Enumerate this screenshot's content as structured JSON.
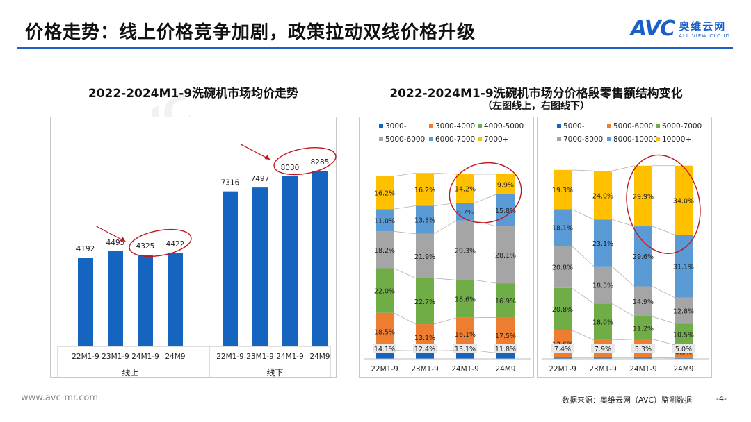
{
  "header": {
    "title": "价格走势：线上价格竞争加剧，政策拉动双线价格升级",
    "logo_mark": "AVC",
    "logo_cn": "奥维云网",
    "logo_en": "ALL VIEW CLOUD",
    "accent_color": "#1f5fbf"
  },
  "left_chart": {
    "title": "2022-2024M1-9洗碗机市场均价走势"
  },
  "right_chart": {
    "title": "2022-2024M1-9洗碗机市场分价格段零售额结构变化",
    "subtitle": "（左图线上，右图线下）"
  },
  "footer": {
    "url": "www.avc-mr.com",
    "source": "数据来源：奥维云网（AVC）监测数据",
    "page": "-4-"
  },
  "chart_data": [
    {
      "type": "bar",
      "title": "2022-2024M1-9洗碗机市场均价走势",
      "groups": [
        "线上",
        "线下"
      ],
      "categories": [
        "22M1-9",
        "23M1-9",
        "24M1-9",
        "24M9"
      ],
      "series": [
        {
          "group": "线上",
          "values": [
            4192,
            4495,
            4325,
            4422
          ]
        },
        {
          "group": "线下",
          "values": [
            7316,
            7497,
            8030,
            8285
          ]
        }
      ],
      "ylim": [
        0,
        9500
      ],
      "bar_color": "#1565c0",
      "annotations": [
        "circle around 24M1-9 and 24M9 (线上)",
        "circle around 24M1-9 and 24M9 (线下)"
      ]
    },
    {
      "type": "bar",
      "stacked": "100%",
      "title": "线上",
      "categories": [
        "22M1-9",
        "23M1-9",
        "24M1-9",
        "24M9"
      ],
      "series": [
        {
          "name": "3000-",
          "color": "#1565c0",
          "values": [
            4.2,
            4.0,
            4.2,
            2.9
          ]
        },
        {
          "name": "3000-4000",
          "color": "#ed7d31",
          "values": [
            18.5,
            13.1,
            16.1,
            17.5
          ]
        },
        {
          "name": "4000-5000",
          "color": "#70ad47",
          "values": [
            22.0,
            22.7,
            18.6,
            16.9
          ]
        },
        {
          "name": "5000-6000",
          "color": "#a5a5a5",
          "values": [
            18.2,
            21.9,
            29.3,
            28.1
          ]
        },
        {
          "name": "6000-7000",
          "color": "#5b9bd5",
          "values": [
            11.0,
            13.8,
            8.7,
            15.8
          ]
        },
        {
          "name": "7000+",
          "color": "#ffc000",
          "values": [
            16.2,
            16.2,
            14.2,
            9.9
          ]
        }
      ],
      "gap_labels": [
        "14.1%",
        "12.4%",
        "13.1%",
        "11.8%"
      ],
      "label_hidden_series": "3000-"
    },
    {
      "type": "bar",
      "stacked": "100%",
      "title": "线下",
      "categories": [
        "22M1-9",
        "23M1-9",
        "24M1-9",
        "24M9"
      ],
      "series": [
        {
          "name": "5000-",
          "color": "#1565c0",
          "values": [
            0.6,
            0.6,
            0.6,
            0.4
          ]
        },
        {
          "name": "5000-6000",
          "color": "#ed7d31",
          "values": [
            13.6,
            8.7,
            9.1,
            6.5
          ]
        },
        {
          "name": "6000-7000",
          "color": "#70ad47",
          "values": [
            20.8,
            18.0,
            11.2,
            10.5
          ]
        },
        {
          "name": "7000-8000",
          "color": "#a5a5a5",
          "values": [
            20.8,
            18.3,
            14.9,
            12.8
          ]
        },
        {
          "name": "8000-10000",
          "color": "#5b9bd5",
          "values": [
            18.1,
            23.1,
            29.6,
            31.1
          ]
        },
        {
          "name": "10000+",
          "color": "#ffc000",
          "values": [
            19.3,
            24.0,
            29.9,
            34.0
          ]
        }
      ],
      "gap_labels": [
        "7.4%",
        "7.9%",
        "5.3%",
        "5.0%"
      ],
      "label_hidden_series": "5000-"
    }
  ]
}
